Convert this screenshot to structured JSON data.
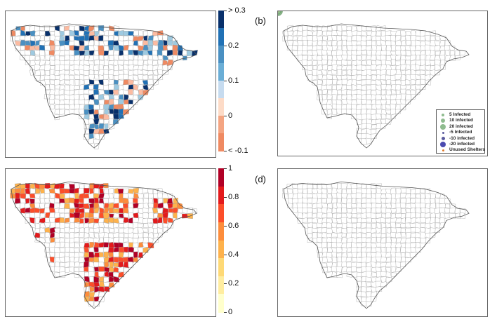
{
  "panel_labels": {
    "b": "(b)",
    "d": "(d)"
  },
  "colorbar_a": {
    "labels": [
      "> 0.3",
      "0.2",
      "0.1",
      "0",
      "< -0.1"
    ],
    "colors": [
      "#08306b",
      "#2171b5",
      "#4a90c2",
      "#6baed6",
      "#c6dbef",
      "#fddbc7",
      "#f4a582",
      "#ef8a62"
    ]
  },
  "colorbar_c": {
    "labels": [
      "1",
      "0.8",
      "0.6",
      "0.4",
      "0.2",
      "0"
    ],
    "colors": [
      "#b10026",
      "#e31a1c",
      "#fc4e2a",
      "#fd8d3c",
      "#feb24c",
      "#fed976",
      "#ffeda0",
      "#ffffcc"
    ]
  },
  "legend_b": {
    "items": [
      {
        "label": "5 Infected",
        "color": "#8fbc8f",
        "size": 4
      },
      {
        "label": "10 infected",
        "color": "#8fbc8f",
        "size": 6
      },
      {
        "label": "20 infected",
        "color": "#8fbc8f",
        "size": 8
      },
      {
        "label": "-5 Infected",
        "color": "#5b5b9e",
        "size": 3
      },
      {
        "label": "-10 infected",
        "color": "#5b5b9e",
        "size": 5
      },
      {
        "label": "-20 infected",
        "color": "#4b4bb0",
        "size": 8
      },
      {
        "label": "Unused Shelters",
        "color": "#e07a2a",
        "size": 3
      }
    ]
  },
  "map_colors": {
    "outline": "#555555",
    "blue_scale": [
      "#08306b",
      "#2171b5",
      "#4a90c2",
      "#9ecae1",
      "#fcbba1",
      "#ef8a62"
    ],
    "red_scale": [
      "#b10026",
      "#e31a1c",
      "#fc4e2a",
      "#fd8d3c",
      "#feb24c"
    ],
    "green_bubble": "#8fbc8f",
    "purple_bubble": "#5b5b9e",
    "orange_dot": "#e07a2a"
  }
}
